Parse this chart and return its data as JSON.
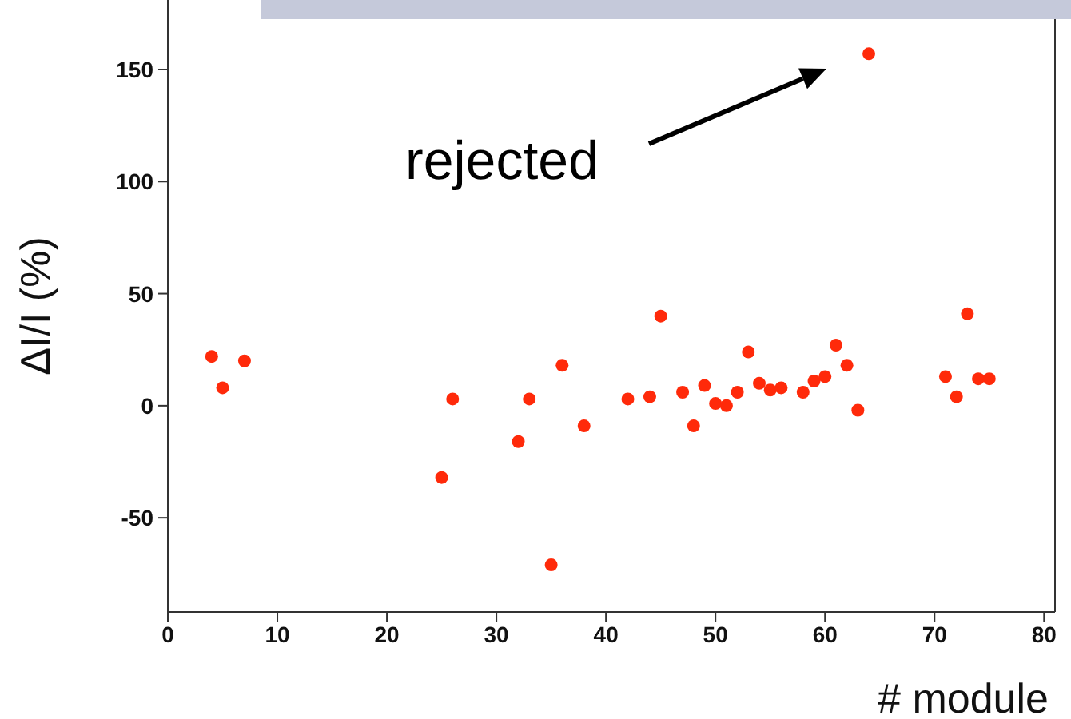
{
  "chart_data": {
    "type": "scatter",
    "ylabel": "ΔI/I (%)",
    "xlabel": "# module",
    "x": [
      4,
      5,
      7,
      25,
      26,
      32,
      33,
      35,
      36,
      38,
      42,
      44,
      45,
      47,
      48,
      49,
      50,
      51,
      52,
      53,
      54,
      55,
      56,
      58,
      59,
      60,
      61,
      62,
      63,
      64,
      71,
      72,
      73,
      74,
      75
    ],
    "series": [
      {
        "color": "#ff2a0a",
        "values": [
          22,
          8,
          20,
          -32,
          3,
          -16,
          3,
          -71,
          18,
          -9,
          3,
          4,
          40,
          6,
          -9,
          9,
          1,
          0,
          6,
          24,
          10,
          7,
          8,
          6,
          11,
          13,
          27,
          18,
          -2,
          157,
          13,
          4,
          41,
          12,
          12
        ]
      }
    ],
    "xlim": [
      0,
      81
    ],
    "xticks": [
      0,
      10,
      20,
      30,
      40,
      50,
      60,
      70,
      80
    ],
    "ylim": [
      -92,
      181
    ],
    "yticks": [
      -50,
      0,
      50,
      100,
      150
    ],
    "annotations": [
      "rejected"
    ],
    "marker": "circle",
    "grid": false
  }
}
